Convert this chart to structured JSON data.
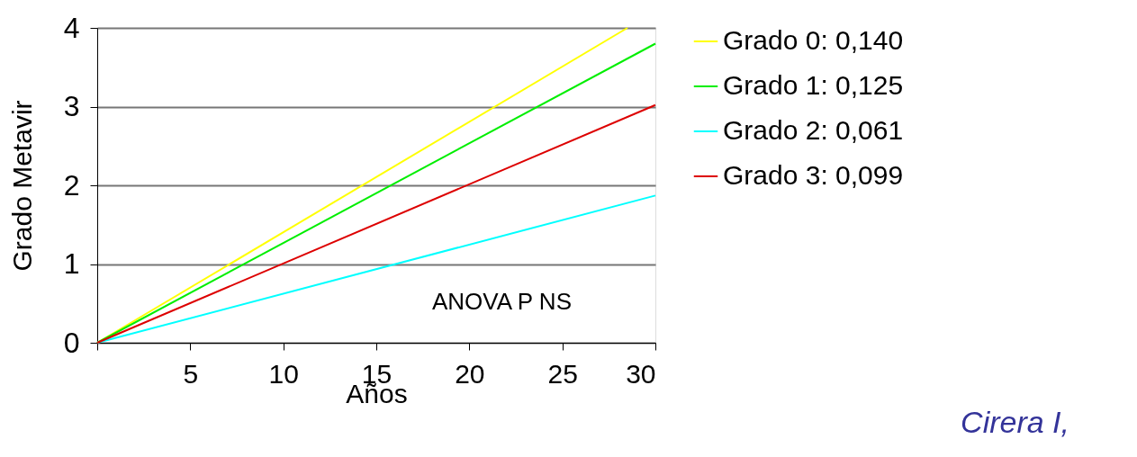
{
  "chart_data": {
    "type": "line",
    "xlabel": "Años",
    "ylabel": "Grado Metavir",
    "xlim": [
      0,
      30
    ],
    "ylim": [
      0,
      4
    ],
    "xticks": [
      {
        "value": 0,
        "label": null
      },
      5,
      10,
      15,
      20,
      25,
      30
    ],
    "yticks": [
      0,
      1,
      2,
      3,
      4
    ],
    "grid": "y",
    "legend": "right",
    "line_style": "solid",
    "marker": "none",
    "series": [
      {
        "name": "Grado 0: 0,140",
        "color": "#ffff00",
        "x": [
          0,
          28.5
        ],
        "values": [
          0,
          4
        ]
      },
      {
        "name": "Grado 1: 0,125",
        "color": "#00ee00",
        "x": [
          0,
          30
        ],
        "values": [
          0,
          3.8
        ]
      },
      {
        "name": "Grado 2: 0,061",
        "color": "#00ffff",
        "x": [
          0,
          30
        ],
        "values": [
          0,
          1.87
        ]
      },
      {
        "name": "Grado 3: 0,099",
        "color": "#dd0000",
        "x": [
          0,
          30
        ],
        "values": [
          0,
          3.02
        ]
      }
    ],
    "annotations": [
      "ANOVA P NS",
      "Cirera I,"
    ]
  }
}
